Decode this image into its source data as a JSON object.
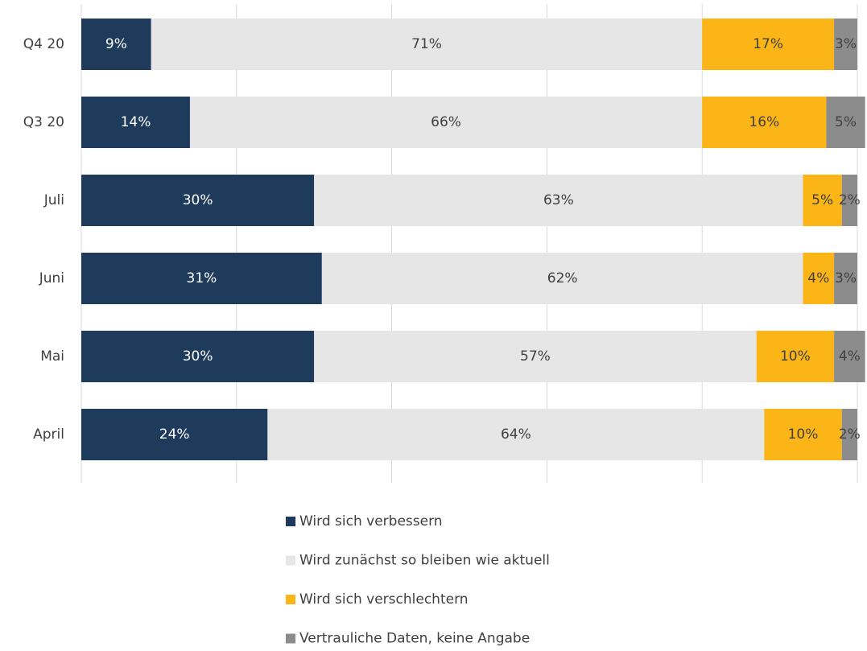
{
  "chart_data": {
    "type": "stacked_bar_horizontal",
    "categories": [
      "Q4 20",
      "Q3 20",
      "Juli",
      "Juni",
      "Mai",
      "April"
    ],
    "series": [
      {
        "name": "Wird sich verbessern",
        "color": "#1f3b5c",
        "values": [
          9,
          14,
          30,
          31,
          30,
          24
        ],
        "value_labels": [
          "9%",
          "14%",
          "30%",
          "31%",
          "30%",
          "24%"
        ]
      },
      {
        "name": "Wird zunächst so bleiben wie aktuell",
        "color": "#e6e6e6",
        "values": [
          71,
          66,
          63,
          62,
          57,
          64
        ],
        "value_labels": [
          "71%",
          "66%",
          "63%",
          "62%",
          "57%",
          "64%"
        ]
      },
      {
        "name": "Wird sich verschlechtern",
        "color": "#fbb516",
        "values": [
          17,
          16,
          5,
          4,
          10,
          10
        ],
        "value_labels": [
          "17%",
          "16%",
          "5%",
          "4%",
          "10%",
          "10%"
        ]
      },
      {
        "name": "Vertrauliche Daten, keine Angabe",
        "color": "#8c8c8c",
        "values": [
          3,
          5,
          2,
          3,
          4,
          2
        ],
        "value_labels": [
          "3%",
          "5%",
          "2%",
          "3%",
          "4%",
          "2%"
        ]
      }
    ],
    "xlim": [
      0,
      100
    ],
    "xticks": [
      0,
      20,
      40,
      60,
      80,
      100
    ],
    "grid": true,
    "legend": "bottom"
  }
}
